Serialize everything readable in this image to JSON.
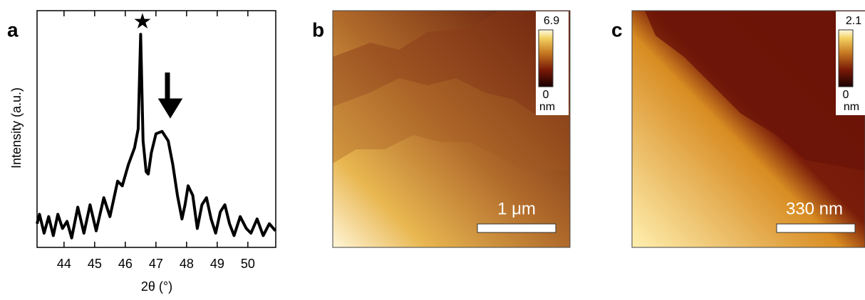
{
  "chart_data": {
    "type": "line",
    "panel_label": "a",
    "x_label": "2θ (°)",
    "y_label": "Intensity (a.u.)",
    "x": [
      43.12,
      43.2,
      43.35,
      43.5,
      43.65,
      43.8,
      43.95,
      44.1,
      44.25,
      44.45,
      44.65,
      44.85,
      45.05,
      45.3,
      45.5,
      45.75,
      45.9,
      46.1,
      46.3,
      46.42,
      46.5,
      46.58,
      46.68,
      46.75,
      46.85,
      47.0,
      47.2,
      47.4,
      47.55,
      47.7,
      47.85,
      47.95,
      48.05,
      48.2,
      48.35,
      48.5,
      48.65,
      48.8,
      48.95,
      49.1,
      49.25,
      49.4,
      49.55,
      49.75,
      49.95,
      50.1,
      50.3,
      50.5,
      50.7,
      50.9
    ],
    "values": [
      10,
      14,
      6,
      13,
      5,
      14,
      8,
      11,
      4,
      17,
      6,
      18,
      7,
      21,
      13,
      28,
      26,
      35,
      42,
      50,
      90,
      45,
      32,
      31,
      40,
      48,
      49,
      45,
      35,
      22,
      12,
      18,
      26,
      22,
      8,
      18,
      21,
      12,
      6,
      15,
      18,
      10,
      5,
      13,
      8,
      6,
      12,
      5,
      10,
      7
    ],
    "color": "#000000",
    "xlim": [
      43.12,
      50.91
    ],
    "xticks": [
      44,
      45,
      46,
      47,
      48,
      49,
      50
    ],
    "ylim": [
      0,
      100
    ]
  },
  "images": [
    {
      "panel_label": "b",
      "colorbar_max": 6.9,
      "colorbar_min": 0,
      "colorbar_unit": "nm",
      "scale_bar": "1 μm"
    },
    {
      "panel_label": "c",
      "colorbar_max": 2.1,
      "colorbar_min": 0,
      "colorbar_unit": "nm",
      "scale_bar": "330 nm"
    }
  ]
}
